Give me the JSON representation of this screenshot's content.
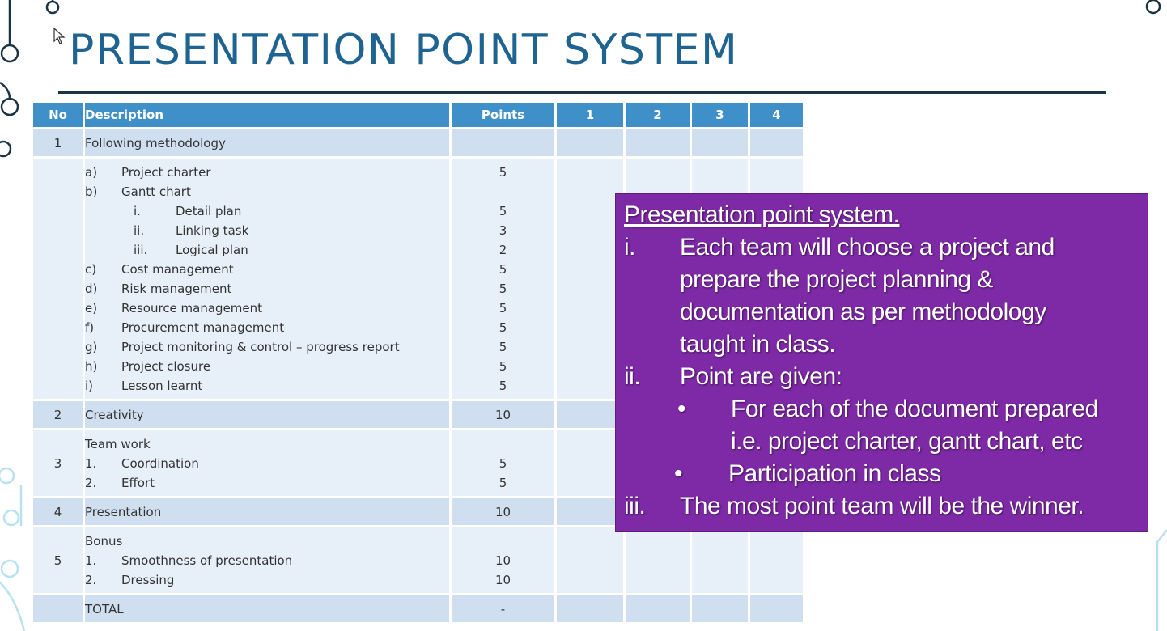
{
  "title": "PRESENTATION POINT SYSTEM",
  "table": {
    "headers": [
      "No",
      "Description",
      "Points",
      "1",
      "2",
      "3",
      "4"
    ],
    "sections": [
      {
        "no": "1",
        "head": "Following methodology",
        "items": [
          {
            "label": "a)",
            "text": "Project charter",
            "points": "5"
          },
          {
            "label": "b)",
            "text": "Gantt chart",
            "points": ""
          },
          {
            "label": "i.",
            "text": "Detail plan",
            "points": "5",
            "sub": true
          },
          {
            "label": "ii.",
            "text": "Linking task",
            "points": "3",
            "sub": true
          },
          {
            "label": "iii.",
            "text": "Logical plan",
            "points": "2",
            "sub": true
          },
          {
            "label": "c)",
            "text": "Cost management",
            "points": "5"
          },
          {
            "label": "d)",
            "text": "Risk management",
            "points": "5"
          },
          {
            "label": "e)",
            "text": "Resource management",
            "points": "5"
          },
          {
            "label": "f)",
            "text": "Procurement management",
            "points": "5"
          },
          {
            "label": "g)",
            "text": "Project monitoring & control – progress report",
            "points": "5"
          },
          {
            "label": "h)",
            "text": "Project closure",
            "points": "5"
          },
          {
            "label": "i)",
            "text": "Lesson learnt",
            "points": "5"
          }
        ]
      },
      {
        "no": "2",
        "head": "Creativity",
        "points": "10"
      },
      {
        "no": "3",
        "head": "Team work",
        "items": [
          {
            "label": "1.",
            "text": "Coordination",
            "points": "5"
          },
          {
            "label": "2.",
            "text": "Effort",
            "points": "5"
          }
        ]
      },
      {
        "no": "4",
        "head": "Presentation",
        "points": "10"
      },
      {
        "no": "5",
        "head": "Bonus",
        "items": [
          {
            "label": "1.",
            "text": "Smoothness of presentation",
            "points": "10"
          },
          {
            "label": "2.",
            "text": "Dressing",
            "points": "10"
          }
        ]
      }
    ],
    "total_label": "TOTAL",
    "total_points": "-"
  },
  "callout": {
    "title": "Presentation point system.",
    "i_num": "i.",
    "i_lines": [
      "Each team will choose a project and",
      "prepare the project planning &",
      "documentation as per methodology",
      "taught in class."
    ],
    "ii_num": "ii.",
    "ii_text": "Point are given:",
    "bullets": [
      [
        "For each of the document prepared",
        "i.e. project charter, gantt chart, etc"
      ],
      [
        "Participation in class"
      ]
    ],
    "iii_num": "iii.",
    "iii_text": "The most point team will be the winner."
  },
  "colors": {
    "title": "#1f6391",
    "header_bg": "#3f8fc8",
    "row_dark": "#cfdfef",
    "row_light": "#e7f0f8",
    "callout_bg": "#7e2aa6",
    "rule": "#1a3345"
  }
}
